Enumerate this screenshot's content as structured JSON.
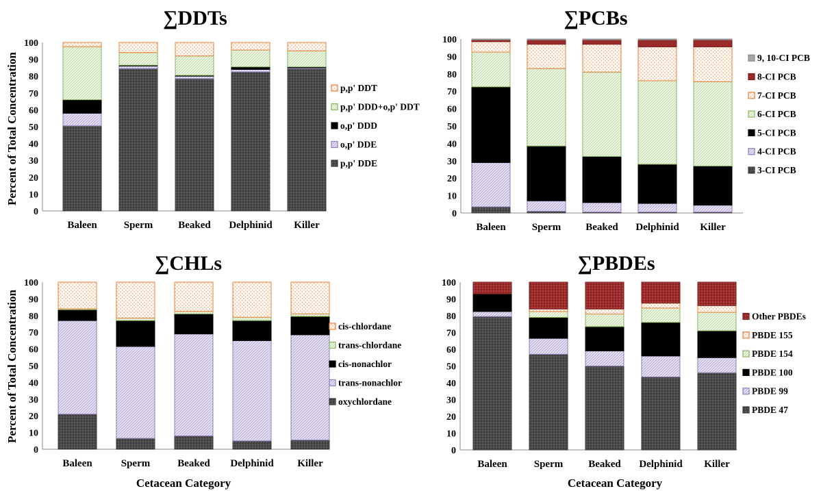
{
  "y_axis_title": "Percent of Total Concentration",
  "x_axis_title": "Cetacean Category",
  "chart_data": [
    {
      "type": "bar",
      "stacked": true,
      "title": "∑DDTs",
      "categories": [
        "Baleen",
        "Sperm",
        "Beaked",
        "Delphinid",
        "Killer"
      ],
      "ylim": [
        0,
        100
      ],
      "yticks": [
        0,
        10,
        20,
        30,
        40,
        50,
        60,
        70,
        80,
        90,
        100
      ],
      "xlabel": "",
      "ylabel": "Percent of Total Concentration",
      "legend_position": "right",
      "series": [
        {
          "name": "p,p' DDE",
          "values": [
            50.5,
            84.5,
            78.5,
            82.5,
            84.5
          ]
        },
        {
          "name": "o,p' DDE",
          "values": [
            7.5,
            1.5,
            1.5,
            1.5,
            0.5
          ]
        },
        {
          "name": "o,p' DDD",
          "values": [
            8.0,
            0.5,
            0.5,
            1.5,
            0.5
          ]
        },
        {
          "name": "p,p' DDD+o,p' DDT",
          "values": [
            31.5,
            7.5,
            11.5,
            10.0,
            9.5
          ]
        },
        {
          "name": "p,p' DDT",
          "values": [
            2.5,
            6.0,
            8.0,
            4.5,
            5.0
          ]
        }
      ]
    },
    {
      "type": "bar",
      "stacked": true,
      "title": "∑PCBs",
      "categories": [
        "Baleen",
        "Sperm",
        "Beaked",
        "Delphinid",
        "Killer"
      ],
      "ylim": [
        0,
        100
      ],
      "yticks": [
        0,
        10,
        20,
        30,
        40,
        50,
        60,
        70,
        80,
        90,
        100
      ],
      "xlabel": "",
      "ylabel": "",
      "legend_position": "right",
      "series": [
        {
          "name": "3-CI PCB",
          "values": [
            3.5,
            1.0,
            0.5,
            0.5,
            0.5
          ]
        },
        {
          "name": "4-CI PCB",
          "values": [
            25.5,
            6.0,
            5.5,
            5.0,
            4.0
          ]
        },
        {
          "name": "5-CI PCB",
          "values": [
            43.5,
            31.5,
            26.5,
            22.5,
            22.5
          ]
        },
        {
          "name": "6-CI PCB",
          "values": [
            20.0,
            44.5,
            48.5,
            48.0,
            48.5
          ]
        },
        {
          "name": "7-CI PCB",
          "values": [
            6.0,
            14.0,
            16.0,
            19.5,
            20.0
          ]
        },
        {
          "name": "8-CI PCB",
          "values": [
            1.0,
            2.5,
            2.5,
            4.0,
            4.0
          ]
        },
        {
          "name": "9, 10-CI PCB",
          "values": [
            0.5,
            0.5,
            0.5,
            0.5,
            0.5
          ]
        }
      ]
    },
    {
      "type": "bar",
      "stacked": true,
      "title": "∑CHLs",
      "categories": [
        "Baleen",
        "Sperm",
        "Beaked",
        "Delphinid",
        "Killer"
      ],
      "ylim": [
        0,
        100
      ],
      "yticks": [
        0,
        10,
        20,
        30,
        40,
        50,
        60,
        70,
        80,
        90,
        100
      ],
      "xlabel": "Cetacean Category",
      "ylabel": "Percent of Total Concentration",
      "legend_position": "right",
      "series": [
        {
          "name": "oxychlordane",
          "values": [
            21.0,
            6.5,
            8.0,
            5.0,
            5.5
          ]
        },
        {
          "name": "trans-nonachlor",
          "values": [
            56.0,
            55.0,
            61.0,
            60.0,
            63.0
          ]
        },
        {
          "name": "cis-nonachlor",
          "values": [
            6.5,
            15.5,
            12.0,
            12.0,
            11.0
          ]
        },
        {
          "name": "trans-chlordane",
          "values": [
            0.5,
            1.5,
            1.5,
            2.0,
            1.5
          ]
        },
        {
          "name": "cis-chlordane",
          "values": [
            16.0,
            21.5,
            17.5,
            21.0,
            19.0
          ]
        }
      ]
    },
    {
      "type": "bar",
      "stacked": true,
      "title": "∑PBDEs",
      "categories": [
        "Baleen",
        "Sperm",
        "Beaked",
        "Delphinid",
        "Killer"
      ],
      "ylim": [
        0,
        100
      ],
      "yticks": [
        0,
        10,
        20,
        30,
        40,
        50,
        60,
        70,
        80,
        90,
        100
      ],
      "xlabel": "Cetacean Category",
      "ylabel": "",
      "legend_position": "right",
      "series": [
        {
          "name": "PBDE 47",
          "values": [
            79.5,
            57.0,
            50.0,
            43.5,
            46.0
          ]
        },
        {
          "name": "PBDE 99",
          "values": [
            3.0,
            9.5,
            9.0,
            12.5,
            9.0
          ]
        },
        {
          "name": "PBDE 100",
          "values": [
            10.5,
            12.5,
            14.5,
            20.0,
            16.0
          ]
        },
        {
          "name": "PBDE 154",
          "values": [
            0.0,
            3.5,
            7.5,
            8.5,
            11.0
          ]
        },
        {
          "name": "PBDE 155",
          "values": [
            0.0,
            1.5,
            3.0,
            3.0,
            4.0
          ]
        },
        {
          "name": "Other PBDEs",
          "values": [
            7.0,
            16.0,
            16.0,
            12.5,
            14.0
          ]
        }
      ]
    }
  ],
  "series_styles": {
    "p,p' DDE": {
      "fill": "#4a4a4a",
      "pattern": "dots",
      "border": "#3a3a3a"
    },
    "o,p' DDE": {
      "fill": "#d9d2ea",
      "pattern": "hatch",
      "border": "#8e7fb8"
    },
    "o,p' DDD": {
      "fill": "#000000",
      "pattern": "none",
      "border": "#000000"
    },
    "p,p' DDD+o,p' DDT": {
      "fill": "#e3efd3",
      "pattern": "hatch",
      "border": "#8ab55e"
    },
    "p,p' DDT": {
      "fill": "#fde9dc",
      "pattern": "dots-light",
      "border": "#e8813a"
    },
    "3-CI PCB": {
      "fill": "#4a4a4a",
      "pattern": "dots",
      "border": "#3a3a3a"
    },
    "4-CI PCB": {
      "fill": "#d9d2ea",
      "pattern": "hatch",
      "border": "#8e7fb8"
    },
    "5-CI PCB": {
      "fill": "#000000",
      "pattern": "none",
      "border": "#000000"
    },
    "6-CI PCB": {
      "fill": "#e3efd3",
      "pattern": "hatch",
      "border": "#8ab55e"
    },
    "7-CI PCB": {
      "fill": "#fde9dc",
      "pattern": "dots-light",
      "border": "#e8813a"
    },
    "8-CI PCB": {
      "fill": "#9b2a2a",
      "pattern": "none",
      "border": "#7a1e1e"
    },
    "9, 10-CI PCB": {
      "fill": "#a6a6a6",
      "pattern": "none",
      "border": "#8a8a8a"
    },
    "oxychlordane": {
      "fill": "#4a4a4a",
      "pattern": "dots",
      "border": "#3a3a3a"
    },
    "trans-nonachlor": {
      "fill": "#d9d2ea",
      "pattern": "hatch",
      "border": "#8e7fb8"
    },
    "cis-nonachlor": {
      "fill": "#000000",
      "pattern": "none",
      "border": "#000000"
    },
    "trans-chlordane": {
      "fill": "#e3efd3",
      "pattern": "hatch",
      "border": "#8ab55e"
    },
    "cis-chlordane": {
      "fill": "#fde9dc",
      "pattern": "dots-light",
      "border": "#e8813a"
    },
    "PBDE 47": {
      "fill": "#4a4a4a",
      "pattern": "dots",
      "border": "#3a3a3a"
    },
    "PBDE 99": {
      "fill": "#d9d2ea",
      "pattern": "hatch",
      "border": "#8e7fb8"
    },
    "PBDE 100": {
      "fill": "#000000",
      "pattern": "none",
      "border": "#000000"
    },
    "PBDE 154": {
      "fill": "#e3efd3",
      "pattern": "hatch",
      "border": "#8ab55e"
    },
    "PBDE 155": {
      "fill": "#fde9dc",
      "pattern": "dots-light",
      "border": "#e8813a"
    },
    "Other PBDEs": {
      "fill": "#9b2a2a",
      "pattern": "dots-dark",
      "border": "#7a1e1e"
    }
  }
}
